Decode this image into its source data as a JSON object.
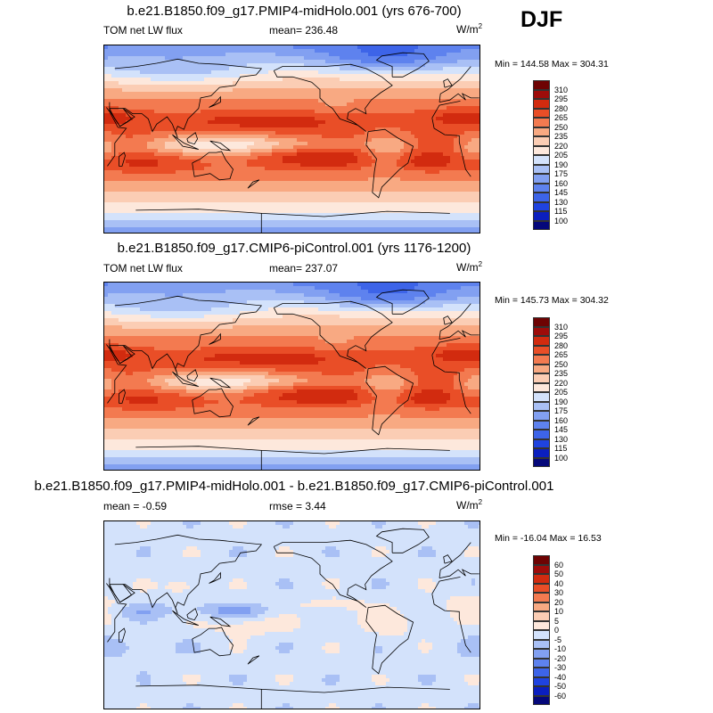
{
  "season": "DJF",
  "panels": [
    {
      "title": "b.e21.B1850.f09_g17.PMIP4-midHolo.001 (yrs 676-700)",
      "left_label": "TOM net LW flux",
      "center_label": "mean= 236.48",
      "unit": "W/m",
      "unit_exp": "2",
      "minmax": "Min = 144.58 Max = 304.31",
      "field": "absolute"
    },
    {
      "title": "b.e21.B1850.f09_g17.CMIP6-piControl.001 (yrs 1176-1200)",
      "left_label": "TOM net LW flux",
      "center_label": "mean= 237.07",
      "unit": "W/m",
      "unit_exp": "2",
      "minmax": "Min = 145.73 Max = 304.32",
      "field": "absolute"
    },
    {
      "title": "b.e21.B1850.f09_g17.PMIP4-midHolo.001 - b.e21.B1850.f09_g17.CMIP6-piControl.001",
      "left_label": "mean =  -0.59",
      "center_label": "rmse =   3.44",
      "unit": "W/m",
      "unit_exp": "2",
      "minmax": "Min = -16.04 Max =  16.53",
      "field": "difference"
    }
  ],
  "chart_data": [
    {
      "type": "heatmap",
      "title": "b.e21.B1850.f09_g17.PMIP4-midHolo.001 (yrs 676-700)",
      "variable": "TOM net LW flux",
      "units": "W/m2",
      "mean": 236.48,
      "min": 144.58,
      "max": 304.31,
      "colorbar_levels": [
        100,
        115,
        130,
        145,
        160,
        175,
        190,
        205,
        220,
        235,
        250,
        265,
        280,
        295,
        310
      ],
      "colorbar_colors": [
        "#05087a",
        "#0b1fbf",
        "#1f43e0",
        "#3d64e8",
        "#5e82ee",
        "#82a0f1",
        "#a9c0f5",
        "#d3e2fb",
        "#fde8dc",
        "#fbcdb4",
        "#f8a982",
        "#f37a50",
        "#e94e27",
        "#d22b0f",
        "#9e0c0a",
        "#6e0303"
      ]
    },
    {
      "type": "heatmap",
      "title": "b.e21.B1850.f09_g17.CMIP6-piControl.001 (yrs 1176-1200)",
      "variable": "TOM net LW flux",
      "units": "W/m2",
      "mean": 237.07,
      "min": 145.73,
      "max": 304.32,
      "colorbar_levels": [
        100,
        115,
        130,
        145,
        160,
        175,
        190,
        205,
        220,
        235,
        250,
        265,
        280,
        295,
        310
      ],
      "colorbar_colors": [
        "#05087a",
        "#0b1fbf",
        "#1f43e0",
        "#3d64e8",
        "#5e82ee",
        "#82a0f1",
        "#a9c0f5",
        "#d3e2fb",
        "#fde8dc",
        "#fbcdb4",
        "#f8a982",
        "#f37a50",
        "#e94e27",
        "#d22b0f",
        "#9e0c0a",
        "#6e0303"
      ]
    },
    {
      "type": "heatmap",
      "title": "b.e21.B1850.f09_g17.PMIP4-midHolo.001 - b.e21.B1850.f09_g17.CMIP6-piControl.001",
      "units": "W/m2",
      "mean": -0.59,
      "rmse": 3.44,
      "min": -16.04,
      "max": 16.53,
      "colorbar_levels": [
        -60,
        -50,
        -40,
        -30,
        -20,
        -10,
        -5,
        0,
        5,
        10,
        20,
        30,
        40,
        50,
        60
      ],
      "colorbar_colors": [
        "#05087a",
        "#0b1fbf",
        "#1f43e0",
        "#3d64e8",
        "#5e82ee",
        "#82a0f1",
        "#a9c0f5",
        "#d3e2fb",
        "#fde8dc",
        "#fbcdb4",
        "#f8a982",
        "#f37a50",
        "#e94e27",
        "#d22b0f",
        "#9e0c0a",
        "#6e0303"
      ]
    }
  ]
}
